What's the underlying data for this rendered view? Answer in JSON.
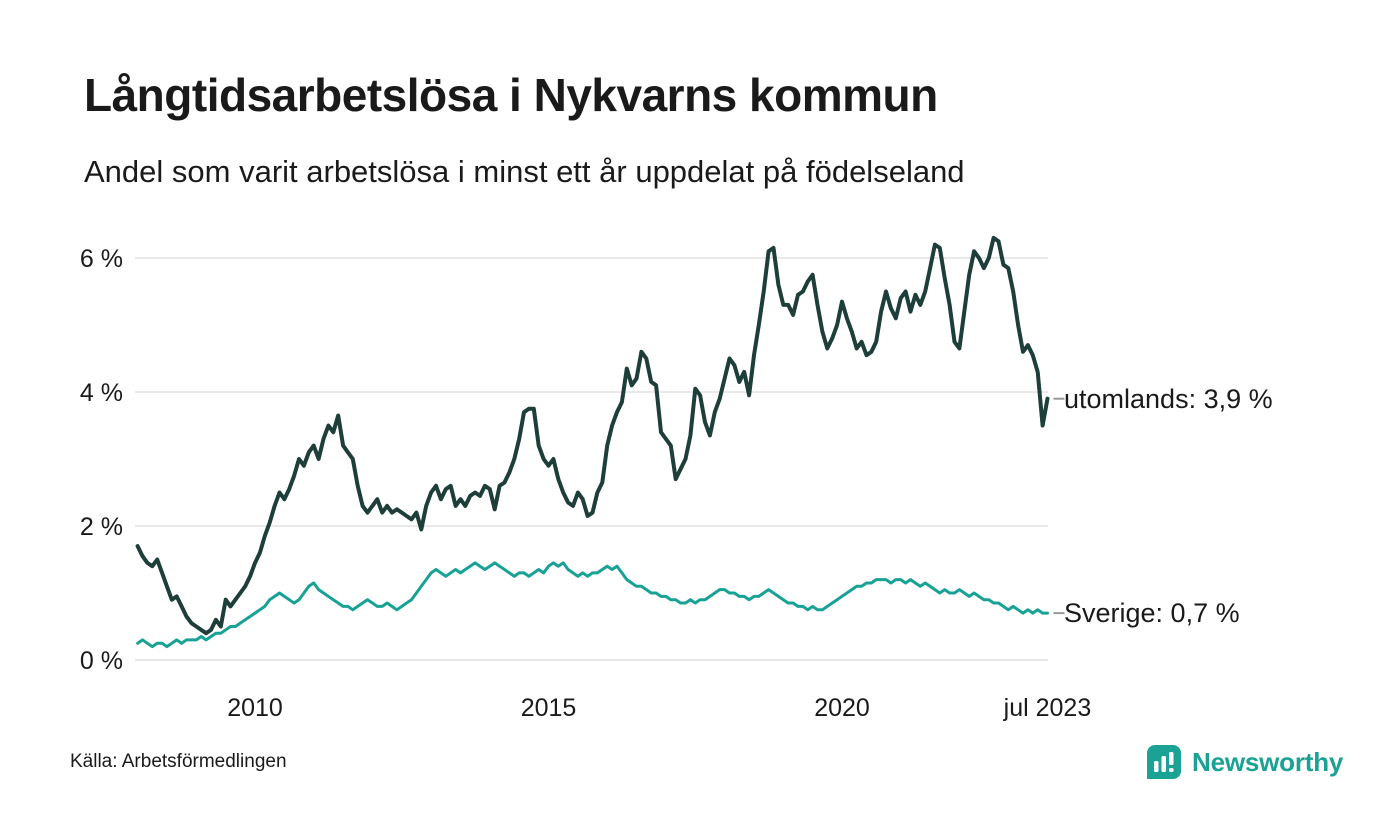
{
  "header": {
    "title": "Långtidsarbetslösa i Nykvarns kommun",
    "subtitle": "Andel som varit arbetslösa i minst ett år uppdelat på födelseland"
  },
  "footer": {
    "source": "Källa: Arbetsförmedlingen",
    "brand": "Newsworthy",
    "brand_color": "#1aa294"
  },
  "chart_data": {
    "type": "line",
    "title": "Långtidsarbetslösa i Nykvarns kommun",
    "subtitle": "Andel som varit arbetslösa i minst ett år uppdelat på födelseland",
    "unit": "%",
    "x_start": "2008-01",
    "x_interval": "month",
    "x_end": "2023-07",
    "ylim": [
      0,
      6.6
    ],
    "grid": "horizontal",
    "grid_color": "#e2e2e2",
    "yticks": [
      {
        "value": 0,
        "label": "0 %"
      },
      {
        "value": 2,
        "label": "2 %"
      },
      {
        "value": 4,
        "label": "4 %"
      },
      {
        "value": 6,
        "label": "6 %"
      }
    ],
    "xticks": [
      {
        "year": 2010,
        "label": "2010"
      },
      {
        "year": 2015,
        "label": "2015"
      },
      {
        "year": 2020,
        "label": "2020"
      },
      {
        "year": 2023.5,
        "label": "jul 2023"
      }
    ],
    "series": [
      {
        "name": "utomlands",
        "color": "#1e3e3a",
        "linewidth": 4,
        "last_value": 3.9,
        "last_value_label": "utomlands: 3,9 %",
        "values": [
          1.7,
          1.55,
          1.45,
          1.4,
          1.5,
          1.3,
          1.1,
          0.9,
          0.95,
          0.8,
          0.65,
          0.55,
          0.5,
          0.45,
          0.4,
          0.45,
          0.6,
          0.5,
          0.9,
          0.8,
          0.9,
          1.0,
          1.1,
          1.25,
          1.45,
          1.6,
          1.85,
          2.05,
          2.3,
          2.5,
          2.4,
          2.55,
          2.75,
          3.0,
          2.9,
          3.1,
          3.2,
          3.0,
          3.3,
          3.5,
          3.4,
          3.65,
          3.2,
          3.1,
          3.0,
          2.6,
          2.3,
          2.2,
          2.3,
          2.4,
          2.2,
          2.3,
          2.2,
          2.25,
          2.2,
          2.15,
          2.1,
          2.2,
          1.95,
          2.3,
          2.5,
          2.6,
          2.4,
          2.55,
          2.6,
          2.3,
          2.4,
          2.3,
          2.45,
          2.5,
          2.45,
          2.6,
          2.55,
          2.25,
          2.6,
          2.65,
          2.8,
          3.0,
          3.3,
          3.7,
          3.75,
          3.75,
          3.2,
          3.0,
          2.9,
          3.0,
          2.7,
          2.5,
          2.35,
          2.3,
          2.5,
          2.4,
          2.15,
          2.2,
          2.5,
          2.65,
          3.2,
          3.5,
          3.7,
          3.85,
          4.35,
          4.1,
          4.2,
          4.6,
          4.5,
          4.15,
          4.1,
          3.4,
          3.3,
          3.2,
          2.7,
          2.85,
          3.0,
          3.35,
          4.05,
          3.95,
          3.55,
          3.35,
          3.7,
          3.9,
          4.2,
          4.5,
          4.4,
          4.15,
          4.3,
          3.95,
          4.55,
          5.0,
          5.5,
          6.1,
          6.15,
          5.6,
          5.3,
          5.3,
          5.15,
          5.45,
          5.5,
          5.65,
          5.75,
          5.3,
          4.9,
          4.65,
          4.8,
          5.0,
          5.35,
          5.1,
          4.9,
          4.65,
          4.75,
          4.55,
          4.6,
          4.75,
          5.2,
          5.5,
          5.25,
          5.1,
          5.4,
          5.5,
          5.2,
          5.45,
          5.3,
          5.5,
          5.85,
          6.2,
          6.15,
          5.7,
          5.3,
          4.75,
          4.65,
          5.2,
          5.75,
          6.1,
          6.0,
          5.85,
          6.0,
          6.3,
          6.25,
          5.9,
          5.85,
          5.5,
          5.0,
          4.6,
          4.7,
          4.55,
          4.3,
          3.5,
          3.9
        ]
      },
      {
        "name": "Sverige",
        "color": "#17a295",
        "linewidth": 3,
        "last_value": 0.7,
        "last_value_label": "Sverige: 0,7 %",
        "values": [
          0.25,
          0.3,
          0.25,
          0.2,
          0.25,
          0.25,
          0.2,
          0.25,
          0.3,
          0.25,
          0.3,
          0.3,
          0.3,
          0.35,
          0.3,
          0.35,
          0.4,
          0.4,
          0.45,
          0.5,
          0.5,
          0.55,
          0.6,
          0.65,
          0.7,
          0.75,
          0.8,
          0.9,
          0.95,
          1.0,
          0.95,
          0.9,
          0.85,
          0.9,
          1.0,
          1.1,
          1.15,
          1.05,
          1.0,
          0.95,
          0.9,
          0.85,
          0.8,
          0.8,
          0.75,
          0.8,
          0.85,
          0.9,
          0.85,
          0.8,
          0.8,
          0.85,
          0.8,
          0.75,
          0.8,
          0.85,
          0.9,
          1.0,
          1.1,
          1.2,
          1.3,
          1.35,
          1.3,
          1.25,
          1.3,
          1.35,
          1.3,
          1.35,
          1.4,
          1.45,
          1.4,
          1.35,
          1.4,
          1.45,
          1.4,
          1.35,
          1.3,
          1.25,
          1.3,
          1.3,
          1.25,
          1.3,
          1.35,
          1.3,
          1.4,
          1.45,
          1.4,
          1.45,
          1.35,
          1.3,
          1.25,
          1.3,
          1.25,
          1.3,
          1.3,
          1.35,
          1.4,
          1.35,
          1.4,
          1.3,
          1.2,
          1.15,
          1.1,
          1.1,
          1.05,
          1.0,
          1.0,
          0.95,
          0.95,
          0.9,
          0.9,
          0.85,
          0.85,
          0.9,
          0.85,
          0.9,
          0.9,
          0.95,
          1.0,
          1.05,
          1.05,
          1.0,
          1.0,
          0.95,
          0.95,
          0.9,
          0.95,
          0.95,
          1.0,
          1.05,
          1.0,
          0.95,
          0.9,
          0.85,
          0.85,
          0.8,
          0.8,
          0.75,
          0.8,
          0.75,
          0.75,
          0.8,
          0.85,
          0.9,
          0.95,
          1.0,
          1.05,
          1.1,
          1.1,
          1.15,
          1.15,
          1.2,
          1.2,
          1.2,
          1.15,
          1.2,
          1.2,
          1.15,
          1.2,
          1.15,
          1.1,
          1.15,
          1.1,
          1.05,
          1.0,
          1.05,
          1.0,
          1.0,
          1.05,
          1.0,
          0.95,
          1.0,
          0.95,
          0.9,
          0.9,
          0.85,
          0.85,
          0.8,
          0.75,
          0.8,
          0.75,
          0.7,
          0.75,
          0.7,
          0.75,
          0.7,
          0.7
        ]
      }
    ]
  }
}
